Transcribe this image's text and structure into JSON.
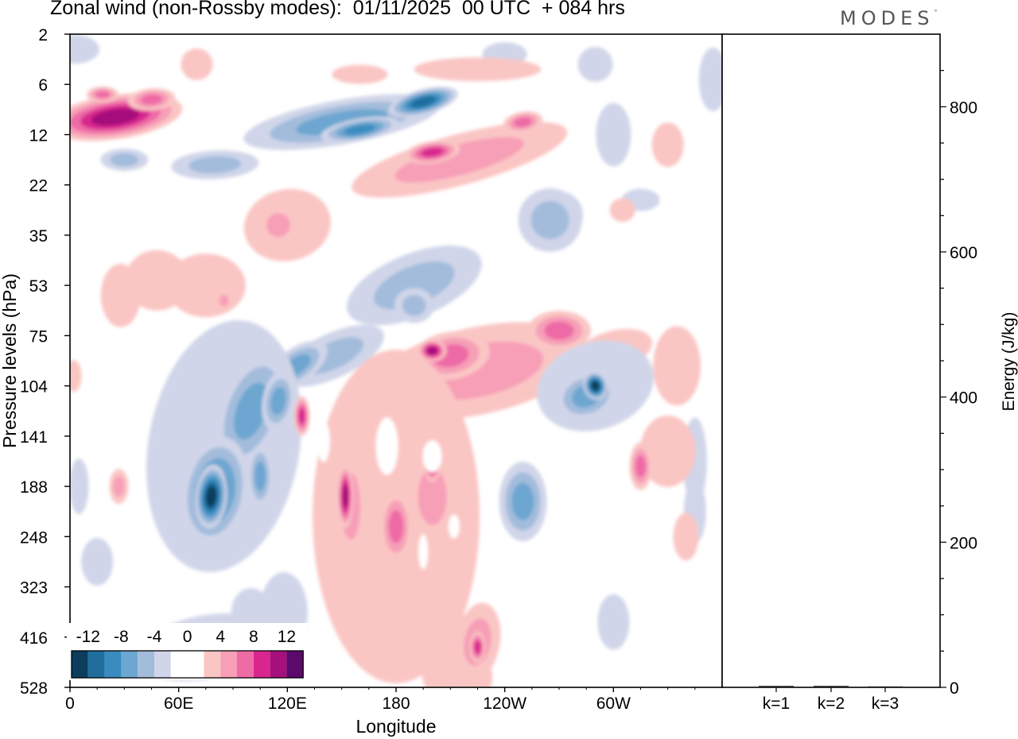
{
  "title": "Zonal wind (non-Rossby modes):  01/11/2025  00 UTC  + 084 hrs",
  "brand": {
    "text": "MODES",
    "mark": "°"
  },
  "chart_data": [
    {
      "type": "heatmap",
      "title": "Zonal wind (non-Rossby modes):  01/11/2025  00 UTC  + 084 hrs",
      "xlabel": "Longitude",
      "ylabel": "Pressure levels (hPa)",
      "x_tick_labels": [
        "0",
        "60E",
        "120E",
        "180",
        "120W",
        "60W"
      ],
      "x_tick_degrees": [
        0,
        60,
        120,
        180,
        240,
        300
      ],
      "xlim": [
        0,
        360
      ],
      "y_tick_labels": [
        "2",
        "6",
        "12",
        "22",
        "35",
        "53",
        "75",
        "104",
        "141",
        "188",
        "248",
        "323",
        "416",
        "528"
      ],
      "color_levels": [
        -14,
        -12,
        -10,
        -8,
        -6,
        -4,
        -2,
        2,
        4,
        6,
        8,
        10,
        12,
        14
      ],
      "colorbar_labels": [
        "-12",
        "-8",
        "-4",
        "0",
        "4",
        "8",
        "12"
      ],
      "colorbar_colors": [
        "#0d3d5c",
        "#1f6e9e",
        "#3a8cc0",
        "#6da6d0",
        "#a3bcdc",
        "#d0d5e9",
        "#ffffff",
        "#ffffff",
        "#fac6c4",
        "#f79fb7",
        "#ee6ba6",
        "#d9268f",
        "#a6107c",
        "#5b0a6c"
      ],
      "features": [
        {
          "sign": "positive",
          "lon": [
            0,
            45
          ],
          "level": [
            "6",
            "12"
          ],
          "peak": 12
        },
        {
          "sign": "negative",
          "lon": [
            100,
            200
          ],
          "level": [
            "6",
            "12"
          ],
          "peak": -10
        },
        {
          "sign": "positive",
          "lon": [
            170,
            280
          ],
          "level": [
            "12",
            "22"
          ],
          "peak": 10
        },
        {
          "sign": "negative",
          "lon": [
            45,
            180
          ],
          "level": [
            "35",
            "141"
          ],
          "peak": -10
        },
        {
          "sign": "negative",
          "lon": [
            70,
            100
          ],
          "level": [
            "141",
            "248"
          ],
          "peak": -12
        },
        {
          "sign": "positive",
          "lon": [
            180,
            300
          ],
          "level": [
            "53",
            "104"
          ],
          "peak": 8
        },
        {
          "sign": "negative",
          "lon": [
            265,
            310
          ],
          "level": [
            "75",
            "141"
          ],
          "peak": -12
        },
        {
          "sign": "positive",
          "lon": [
            125,
            230
          ],
          "level": [
            "104",
            "416"
          ],
          "peak": 10
        }
      ]
    },
    {
      "type": "bar",
      "categories": [
        "k=1",
        "k=2",
        "k=3"
      ],
      "values": [
        2,
        2,
        1
      ],
      "ylabel": "Energy (J/kg)",
      "ylim": [
        0,
        900
      ],
      "y_tick_labels": [
        "0",
        "200",
        "400",
        "600",
        "800"
      ],
      "y_tick_values": [
        0,
        200,
        400,
        600,
        800
      ]
    }
  ]
}
